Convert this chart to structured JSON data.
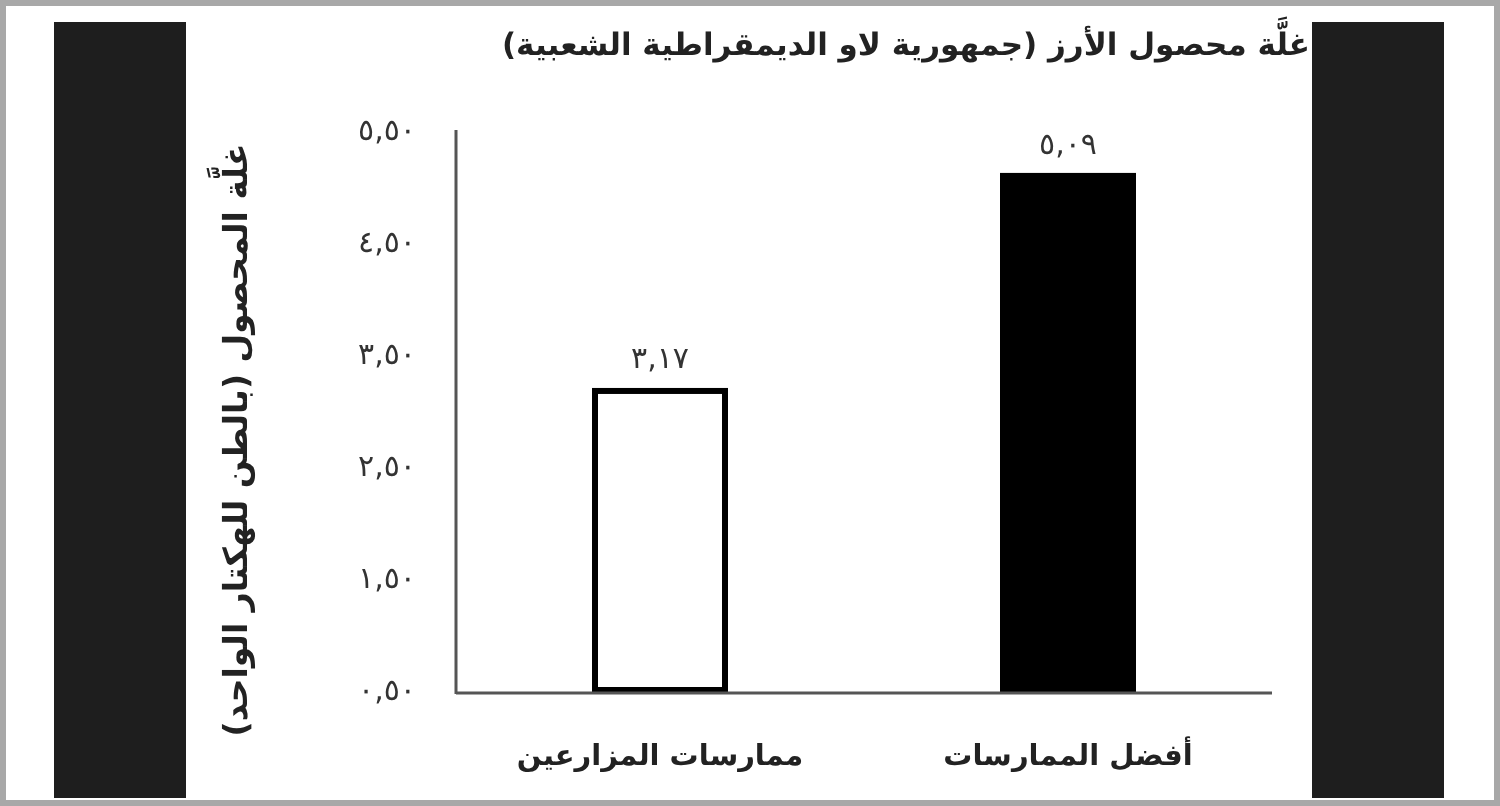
{
  "chart_data": {
    "type": "bar",
    "title": "غلَّة محصول الأرز (جمهورية لاو الديمقراطية الشعبية)",
    "ylabel": "غلَّة المحصول (بالطن للهكتار الواحد)",
    "categories": [
      "ممارسات المزارعين",
      "أفضل الممارسات"
    ],
    "values": [
      3.17,
      5.09
    ],
    "colors": [
      "#ffffff",
      "#000000"
    ],
    "value_labels": [
      "٣,١٧",
      "٥,٠٩"
    ],
    "ylim": [
      0.5,
      5.5
    ],
    "yticks": [
      {
        "value": 0.5,
        "label": "٠,٥٠"
      },
      {
        "value": 1.5,
        "label": "١,٥٠"
      },
      {
        "value": 2.5,
        "label": "٢,٥٠"
      },
      {
        "value": 3.5,
        "label": "٣,٥٠"
      },
      {
        "value": 4.5,
        "label": "٤,٥٠"
      },
      {
        "value": 5.5,
        "label": "٥,٥٠"
      }
    ]
  }
}
